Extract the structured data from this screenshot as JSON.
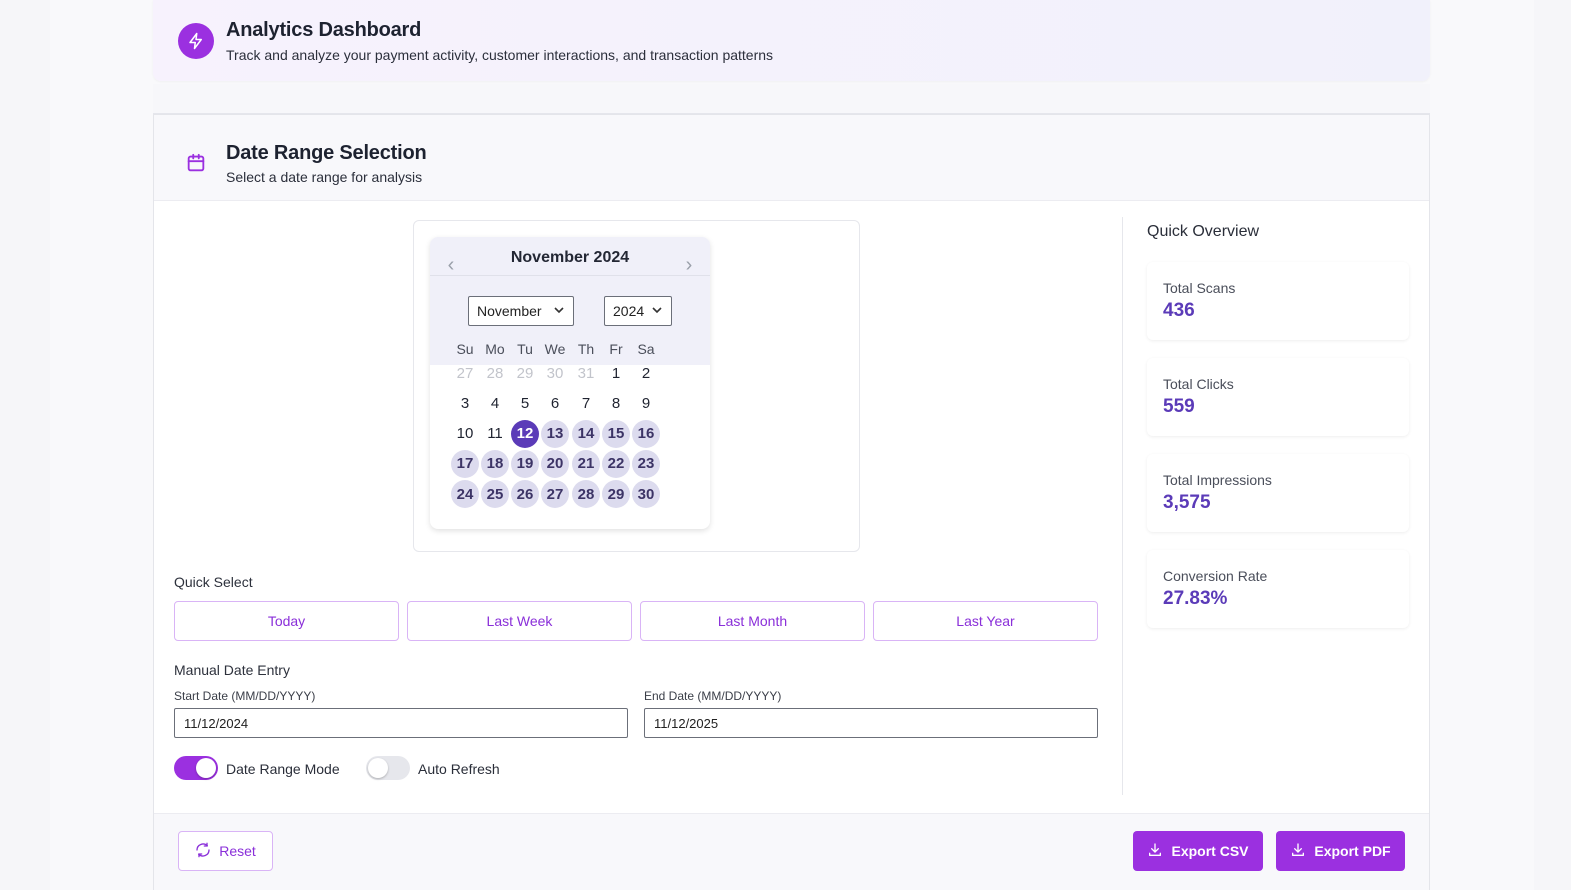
{
  "header": {
    "title": "Analytics Dashboard",
    "subtitle": "Track and analyze your payment activity, customer interactions, and transaction patterns"
  },
  "date_range_card": {
    "title": "Date Range Selection",
    "subtitle": "Select a date range for analysis"
  },
  "calendar": {
    "month_year_label": "November 2024",
    "prev_label": "‹",
    "next_label": "›",
    "month_select": "November",
    "year_select": "2024",
    "weekdays": [
      "Su",
      "Mo",
      "Tu",
      "We",
      "Th",
      "Fr",
      "Sa"
    ],
    "weeks": [
      [
        {
          "d": "27",
          "s": "out"
        },
        {
          "d": "28",
          "s": "out"
        },
        {
          "d": "29",
          "s": "out"
        },
        {
          "d": "30",
          "s": "out"
        },
        {
          "d": "31",
          "s": "out"
        },
        {
          "d": "1",
          "s": ""
        },
        {
          "d": "2",
          "s": ""
        }
      ],
      [
        {
          "d": "3",
          "s": ""
        },
        {
          "d": "4",
          "s": ""
        },
        {
          "d": "5",
          "s": ""
        },
        {
          "d": "6",
          "s": ""
        },
        {
          "d": "7",
          "s": ""
        },
        {
          "d": "8",
          "s": ""
        },
        {
          "d": "9",
          "s": ""
        }
      ],
      [
        {
          "d": "10",
          "s": ""
        },
        {
          "d": "11",
          "s": ""
        },
        {
          "d": "12",
          "s": "sel"
        },
        {
          "d": "13",
          "s": "range"
        },
        {
          "d": "14",
          "s": "range"
        },
        {
          "d": "15",
          "s": "range"
        },
        {
          "d": "16",
          "s": "range"
        }
      ],
      [
        {
          "d": "17",
          "s": "range"
        },
        {
          "d": "18",
          "s": "range"
        },
        {
          "d": "19",
          "s": "range"
        },
        {
          "d": "20",
          "s": "range"
        },
        {
          "d": "21",
          "s": "range"
        },
        {
          "d": "22",
          "s": "range"
        },
        {
          "d": "23",
          "s": "range"
        }
      ],
      [
        {
          "d": "24",
          "s": "range"
        },
        {
          "d": "25",
          "s": "range"
        },
        {
          "d": "26",
          "s": "range"
        },
        {
          "d": "27",
          "s": "range"
        },
        {
          "d": "28",
          "s": "range"
        },
        {
          "d": "29",
          "s": "range"
        },
        {
          "d": "30",
          "s": "range"
        }
      ]
    ]
  },
  "quick_select": {
    "label": "Quick Select",
    "buttons": [
      "Today",
      "Last Week",
      "Last Month",
      "Last Year"
    ]
  },
  "manual_entry": {
    "label": "Manual Date Entry",
    "start_label": "Start Date (MM/DD/YYYY)",
    "start_value": "11/12/2024",
    "end_label": "End Date (MM/DD/YYYY)",
    "end_value": "11/12/2025"
  },
  "toggles": {
    "date_range_mode_label": "Date Range Mode",
    "date_range_mode_on": true,
    "auto_refresh_label": "Auto Refresh",
    "auto_refresh_on": false
  },
  "quick_overview": {
    "title": "Quick Overview",
    "stats": [
      {
        "label": "Total Scans",
        "value": "436"
      },
      {
        "label": "Total Clicks",
        "value": "559"
      },
      {
        "label": "Total Impressions",
        "value": "3,575"
      },
      {
        "label": "Conversion Rate",
        "value": "27.83%"
      }
    ]
  },
  "footer": {
    "reset_label": "Reset",
    "export_csv_label": "Export CSV",
    "export_pdf_label": "Export PDF"
  },
  "colors": {
    "accent": "#9b30e0",
    "selected_day": "#5b3bb8",
    "range_day": "#dcdbee",
    "stat_value": "#5b3bb8"
  },
  "icons": {
    "header": "lightning-icon",
    "card": "calendar-icon",
    "reset": "refresh-icon",
    "export": "download-icon"
  }
}
